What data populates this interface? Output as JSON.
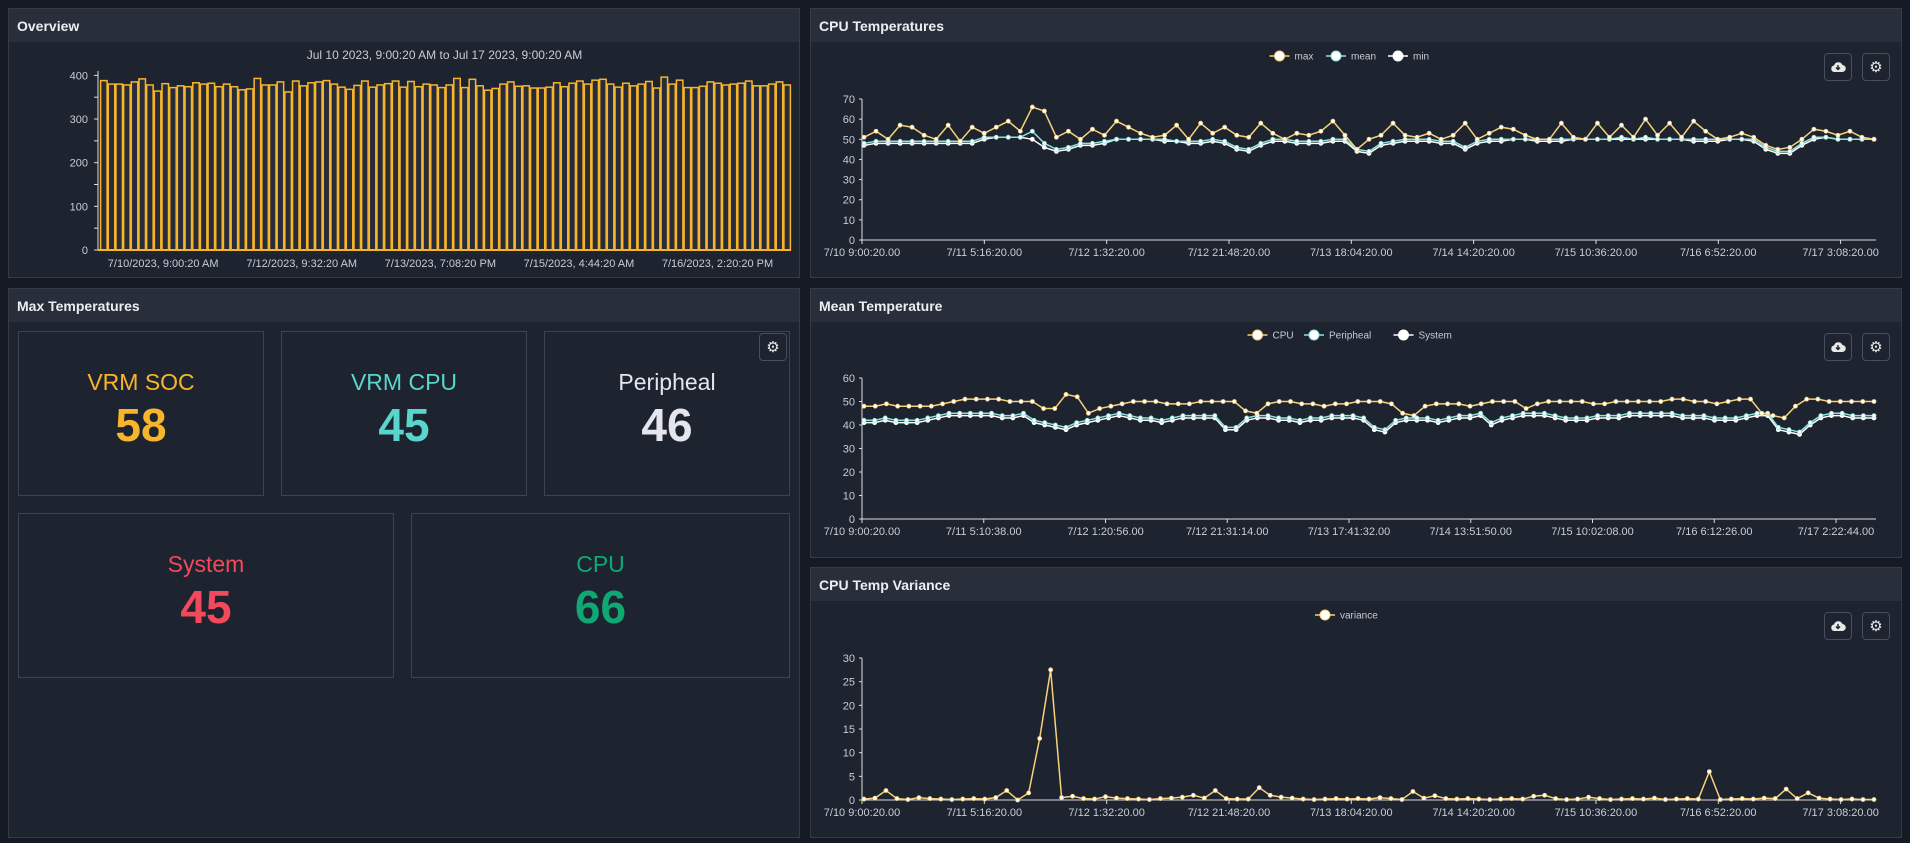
{
  "overview": {
    "title": "Overview",
    "chart_data": {
      "type": "bar",
      "title": "Jul 10 2023, 9:00:20 AM to Jul 17 2023, 9:00:20 AM",
      "ylim": [
        0,
        410
      ],
      "yticks": [
        0,
        100,
        200,
        300,
        400
      ],
      "xtick_labels": [
        "7/10/2023, 9:00:20 AM",
        "7/12/2023, 9:32:20 AM",
        "7/13/2023, 7:08:20 PM",
        "7/15/2023, 4:44:20 AM",
        "7/16/2023, 2:20:20 PM"
      ],
      "color": "#f7b52b",
      "values": [
        388,
        380,
        380,
        378,
        385,
        392,
        378,
        364,
        381,
        372,
        376,
        374,
        383,
        380,
        382,
        374,
        380,
        374,
        367,
        369,
        393,
        378,
        378,
        385,
        362,
        387,
        376,
        383,
        385,
        388,
        380,
        373,
        368,
        377,
        387,
        373,
        378,
        381,
        387,
        373,
        386,
        374,
        380,
        378,
        372,
        378,
        393,
        372,
        391,
        376,
        366,
        370,
        380,
        385,
        375,
        376,
        371,
        371,
        373,
        383,
        374,
        382,
        387,
        380,
        389,
        391,
        380,
        373,
        382,
        376,
        380,
        386,
        371,
        396,
        380,
        389,
        372,
        372,
        375,
        385,
        382,
        378,
        380,
        382,
        387,
        376,
        376,
        380,
        385,
        378
      ]
    }
  },
  "max_temperatures": {
    "title": "Max Temperatures",
    "settings_icon": "gear-icon",
    "stats": [
      {
        "label": "VRM SOC",
        "value": "58",
        "color": "#f7b52b"
      },
      {
        "label": "VRM CPU",
        "value": "45",
        "color": "#5ad5cc"
      },
      {
        "label": "Peripheal",
        "value": "46",
        "color": "#e4e6ec"
      },
      {
        "label": "System",
        "value": "45",
        "color": "#f2495c"
      },
      {
        "label": "CPU",
        "value": "66",
        "color": "#0fa873"
      }
    ]
  },
  "cpu_temperatures": {
    "title": "CPU Temperatures",
    "download_icon": "cloud-download-icon",
    "settings_icon": "gear-icon",
    "chart_data": {
      "type": "line",
      "ylim": [
        0,
        70
      ],
      "yticks": [
        0,
        10,
        20,
        30,
        40,
        50,
        60,
        70
      ],
      "x_start": "7/10 9:00:20.00",
      "x_end": "7/17 9:00:20.00",
      "xtick_labels": [
        "7/10 9:00:20.00",
        "7/11 5:16:20.00",
        "7/12 1:32:20.00",
        "7/12 21:48:20.00",
        "7/13 18:04:20.00",
        "7/14 14:20:20.00",
        "7/15 10:36:20.00",
        "7/16 6:52:20.00",
        "7/17 3:08:20.00"
      ],
      "series": [
        {
          "name": "max",
          "color": "#f7d27a",
          "values": [
            51,
            54,
            50,
            57,
            56,
            52,
            50,
            57,
            49,
            56,
            53,
            56,
            59,
            54,
            66,
            64,
            51,
            54,
            50,
            55,
            52,
            59,
            56,
            53,
            51,
            52,
            57,
            50,
            58,
            53,
            56,
            52,
            51,
            58,
            53,
            50,
            53,
            52,
            54,
            59,
            52,
            45,
            50,
            52,
            58,
            52,
            51,
            53,
            50,
            52,
            58,
            50,
            53,
            56,
            55,
            52,
            50,
            50,
            58,
            51,
            50,
            58,
            51,
            57,
            51,
            60,
            52,
            58,
            51,
            59,
            54,
            50,
            51,
            53,
            51,
            47,
            45,
            46,
            50,
            55,
            54,
            52,
            54,
            51,
            50
          ]
        },
        {
          "name": "mean",
          "color": "#8fe3dc",
          "values": [
            48,
            49,
            49,
            49,
            49,
            49,
            49,
            49,
            49,
            49,
            51,
            51,
            51,
            51,
            54,
            48,
            45,
            46,
            48,
            48,
            49,
            50,
            50,
            50,
            50,
            50,
            49,
            49,
            49,
            50,
            49,
            46,
            45,
            48,
            50,
            50,
            49,
            49,
            49,
            50,
            50,
            45,
            44,
            48,
            49,
            50,
            50,
            50,
            49,
            49,
            46,
            49,
            50,
            50,
            50,
            50,
            50,
            50,
            50,
            50,
            50,
            50,
            50,
            51,
            50,
            51,
            50,
            50,
            50,
            50,
            50,
            50,
            50,
            50,
            50,
            46,
            44,
            44,
            48,
            51,
            51,
            50,
            50,
            50,
            50
          ]
        },
        {
          "name": "min",
          "color": "#ffffff",
          "values": [
            47,
            48,
            48,
            48,
            48,
            48,
            48,
            48,
            48,
            48,
            50,
            51,
            51,
            51,
            50,
            46,
            44,
            45,
            47,
            47,
            48,
            50,
            50,
            50,
            50,
            49,
            49,
            48,
            48,
            49,
            48,
            45,
            44,
            47,
            49,
            49,
            48,
            48,
            48,
            49,
            49,
            44,
            43,
            47,
            48,
            49,
            49,
            49,
            48,
            48,
            45,
            48,
            49,
            49,
            50,
            50,
            49,
            49,
            49,
            50,
            50,
            50,
            50,
            50,
            50,
            50,
            50,
            50,
            50,
            49,
            49,
            49,
            50,
            50,
            49,
            45,
            43,
            43,
            47,
            50,
            51,
            50,
            50,
            50,
            50
          ]
        }
      ]
    }
  },
  "mean_temperature": {
    "title": "Mean Temperature",
    "download_icon": "cloud-download-icon",
    "settings_icon": "gear-icon",
    "chart_data": {
      "type": "line",
      "ylim": [
        0,
        60
      ],
      "yticks": [
        0,
        10,
        20,
        30,
        40,
        50,
        60
      ],
      "x_start": "7/10 9:00:20.00",
      "x_end": "7/17 9:00:20.00",
      "xtick_labels": [
        "7/10 9:00:20.00",
        "7/11 5:10:38.00",
        "7/12 1:20:56.00",
        "7/12 21:31:14.00",
        "7/13 17:41:32.00",
        "7/14 13:51:50.00",
        "7/15 10:02:08.00",
        "7/16 6:12:26.00",
        "7/17 2:22:44.00"
      ],
      "series": [
        {
          "name": "CPU",
          "color": "#f7d27a",
          "values": [
            48,
            48,
            49,
            48,
            48,
            48,
            48,
            49,
            50,
            51,
            51,
            51,
            51,
            50,
            50,
            50,
            47,
            47,
            53,
            52,
            45,
            47,
            48,
            49,
            50,
            50,
            50,
            49,
            49,
            49,
            50,
            50,
            50,
            50,
            46,
            45,
            49,
            50,
            50,
            49,
            49,
            48,
            49,
            49,
            50,
            50,
            50,
            49,
            45,
            44,
            48,
            49,
            49,
            49,
            48,
            49,
            50,
            50,
            50,
            47,
            49,
            50,
            50,
            50,
            50,
            49,
            49,
            50,
            50,
            50,
            50,
            50,
            51,
            51,
            50,
            50,
            49,
            50,
            51,
            51,
            45,
            44,
            43,
            48,
            51,
            51,
            50,
            50,
            50,
            50,
            50
          ]
        },
        {
          "name": "Peripheal",
          "color": "#8fe3dc",
          "values": [
            42,
            42,
            43,
            42,
            42,
            42,
            43,
            44,
            45,
            45,
            45,
            45,
            45,
            44,
            44,
            45,
            42,
            41,
            40,
            39,
            41,
            42,
            43,
            44,
            45,
            44,
            43,
            43,
            42,
            43,
            44,
            44,
            44,
            44,
            39,
            39,
            43,
            44,
            44,
            43,
            43,
            42,
            43,
            43,
            44,
            44,
            44,
            43,
            39,
            38,
            42,
            43,
            43,
            43,
            42,
            43,
            44,
            44,
            45,
            41,
            43,
            44,
            45,
            45,
            45,
            44,
            43,
            43,
            43,
            44,
            44,
            44,
            45,
            45,
            45,
            45,
            45,
            44,
            44,
            44,
            43,
            43,
            43,
            44,
            45,
            45,
            39,
            38,
            37,
            41,
            44,
            45,
            45,
            44,
            44,
            44
          ]
        },
        {
          "name": "System",
          "color": "#ffffff",
          "values": [
            41,
            41,
            42,
            41,
            41,
            41,
            42,
            43,
            44,
            44,
            44,
            44,
            44,
            43,
            43,
            44,
            41,
            40,
            39,
            38,
            40,
            41,
            42,
            43,
            44,
            43,
            42,
            42,
            41,
            42,
            43,
            43,
            43,
            43,
            38,
            38,
            42,
            43,
            43,
            42,
            42,
            41,
            42,
            42,
            43,
            43,
            43,
            42,
            38,
            37,
            41,
            42,
            42,
            42,
            41,
            42,
            43,
            43,
            44,
            40,
            42,
            43,
            44,
            44,
            44,
            43,
            42,
            42,
            42,
            43,
            43,
            43,
            44,
            44,
            44,
            44,
            44,
            43,
            43,
            43,
            42,
            42,
            42,
            43,
            44,
            44,
            38,
            37,
            36,
            40,
            43,
            44,
            44,
            43,
            43,
            43
          ]
        }
      ]
    }
  },
  "cpu_temp_variance": {
    "title": "CPU Temp Variance",
    "download_icon": "cloud-download-icon",
    "settings_icon": "gear-icon",
    "chart_data": {
      "type": "line",
      "ylim": [
        0,
        30
      ],
      "yticks": [
        0,
        5,
        10,
        15,
        20,
        25,
        30
      ],
      "x_start": "7/10 9:00:20.00",
      "x_end": "7/17 9:00:20.00",
      "xtick_labels": [
        "7/10 9:00:20.00",
        "7/11 5:16:20.00",
        "7/12 1:32:20.00",
        "7/12 21:48:20.00",
        "7/13 18:04:20.00",
        "7/14 14:20:20.00",
        "7/15 10:36:20.00",
        "7/16 6:52:20.00",
        "7/17 3:08:20.00"
      ],
      "series": [
        {
          "name": "variance",
          "color": "#f7d27a",
          "values": [
            0.2,
            0.4,
            2,
            0.3,
            0.1,
            0.5,
            0.3,
            0.2,
            0.1,
            0.2,
            0.3,
            0.2,
            0.5,
            2,
            0,
            1.5,
            13,
            27.5,
            0.5,
            0.8,
            0.3,
            0.2,
            0.7,
            0.4,
            0.3,
            0.2,
            0.1,
            0.3,
            0.4,
            0.6,
            1,
            0.4,
            2,
            0.3,
            0.2,
            0.2,
            2.6,
            1,
            0.6,
            0.4,
            0.2,
            0.1,
            0.2,
            0.3,
            0.2,
            0.3,
            0.2,
            0.5,
            0.3,
            0.1,
            1.8,
            0.4,
            0.9,
            0.3,
            0.2,
            0.3,
            0.2,
            0.1,
            0.2,
            0.3,
            0.2,
            0.8,
            1,
            0.3,
            0.1,
            0.2,
            0.6,
            0.3,
            0.1,
            0.2,
            0.3,
            0.2,
            0.4,
            0.1,
            0.2,
            0.3,
            0.2,
            6,
            0.1,
            0.2,
            0.3,
            0.2,
            0.4,
            0.3,
            2.3,
            0.3,
            1.5,
            0.4,
            0.2,
            0.1,
            0.2,
            0.1,
            0.1
          ]
        }
      ]
    }
  }
}
